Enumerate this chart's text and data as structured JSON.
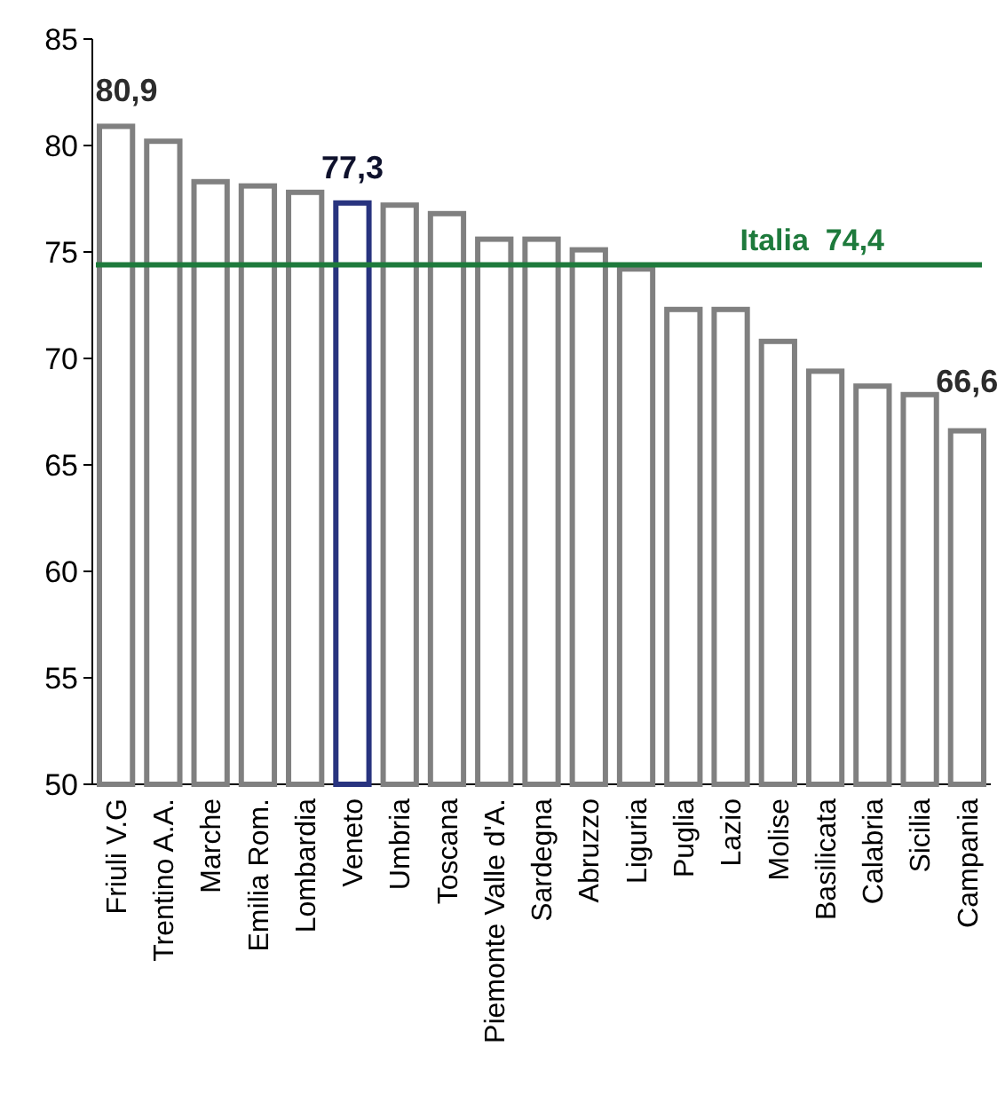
{
  "chart_data": {
    "type": "bar",
    "categories": [
      "Friuli V.G",
      "Trentino A.A.",
      "Marche",
      "Emilia Rom.",
      "Lombardia",
      "Veneto",
      "Umbria",
      "Toscana",
      "Piemonte Valle d'A.",
      "Sardegna",
      "Abruzzo",
      "Liguria",
      "Puglia",
      "Lazio",
      "Molise",
      "Basilicata",
      "Calabria",
      "Sicilia",
      "Campania"
    ],
    "values": [
      80.9,
      80.2,
      78.3,
      78.1,
      77.8,
      77.3,
      77.2,
      76.8,
      75.6,
      75.6,
      75.1,
      74.2,
      72.3,
      72.3,
      70.8,
      69.4,
      68.7,
      68.3,
      66.6
    ],
    "colors": [
      "#808080",
      "#808080",
      "#808080",
      "#808080",
      "#808080",
      "#28337f",
      "#808080",
      "#808080",
      "#808080",
      "#808080",
      "#808080",
      "#808080",
      "#808080",
      "#808080",
      "#808080",
      "#808080",
      "#808080",
      "#808080",
      "#808080"
    ],
    "value_labels": [
      "80,9",
      null,
      null,
      null,
      null,
      "77,3",
      null,
      null,
      null,
      null,
      null,
      null,
      null,
      null,
      null,
      null,
      null,
      null,
      "66,6"
    ],
    "ylim": [
      50,
      85
    ],
    "yticks": [
      50,
      55,
      60,
      65,
      70,
      75,
      80,
      85
    ],
    "ref_lines": [
      {
        "axis": "y",
        "value": 74.4,
        "label": "Italia  74,4",
        "color": "#1e7a3c"
      }
    ],
    "grid": false
  }
}
